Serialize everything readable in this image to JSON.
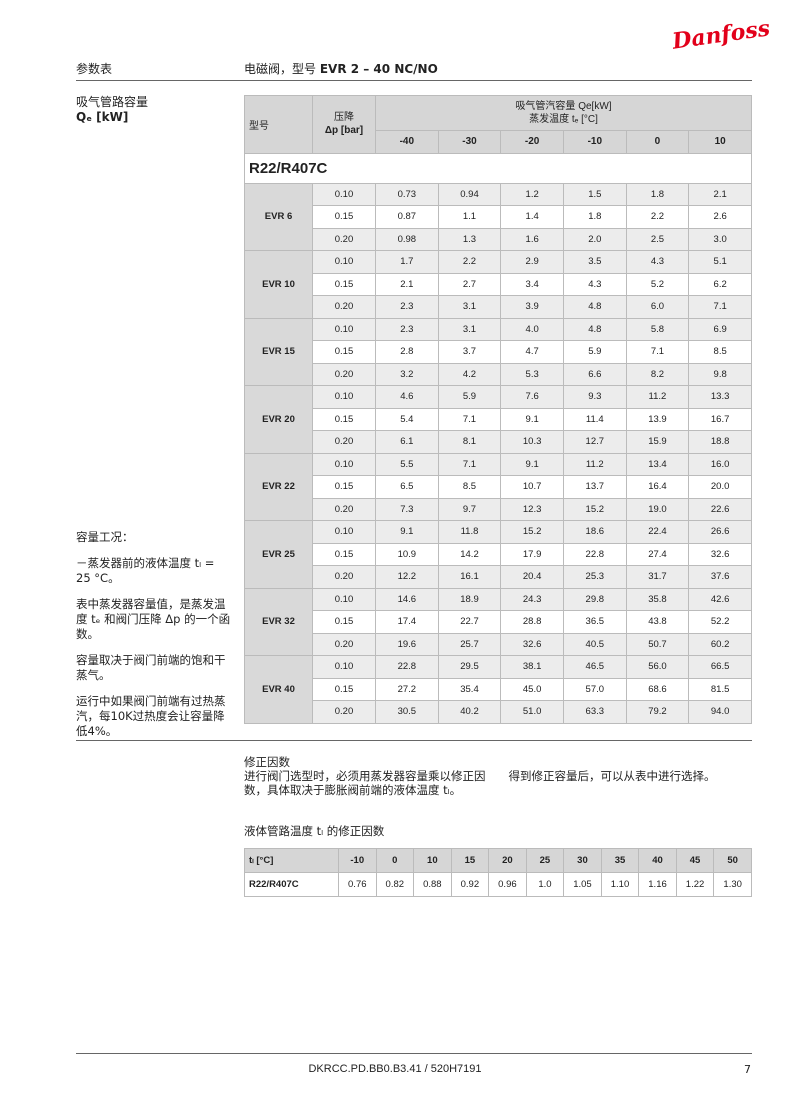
{
  "header": {
    "logo": "Danfoss",
    "section": "参数表",
    "title_prefix": "电磁阀，型号 ",
    "title_bold": "EVR 2 – 40 NC/NO"
  },
  "side": {
    "title": "吸气管路容量",
    "unit": "Qₑ [kW]",
    "notes": [
      "容量工况：",
      "－蒸发器前的液体温度 tₗ = 25 °C。",
      "表中蒸发器容量值，是蒸发温度 tₑ 和阀门压降 Δp 的一个函数。",
      "容量取决于阀门前端的饱和干蒸气。",
      "运行中如果阀门前端有过热蒸汽，每10K过热度会让容量降低4%。"
    ]
  },
  "table": {
    "col_model": "型号",
    "col_dp": "压降",
    "col_dp_unit": "Δp [bar]",
    "cap_title": "吸气管汽容量 Qe[kW]",
    "cap_sub": "蒸发温度 tₑ [°C]",
    "temps": [
      "-40",
      "-30",
      "-20",
      "-10",
      "0",
      "10"
    ],
    "refrigerant": "R22/R407C",
    "groups": [
      {
        "model": "EVR 6",
        "rows": [
          [
            "0.10",
            "0.73",
            "0.94",
            "1.2",
            "1.5",
            "1.8",
            "2.1"
          ],
          [
            "0.15",
            "0.87",
            "1.1",
            "1.4",
            "1.8",
            "2.2",
            "2.6"
          ],
          [
            "0.20",
            "0.98",
            "1.3",
            "1.6",
            "2.0",
            "2.5",
            "3.0"
          ]
        ]
      },
      {
        "model": "EVR 10",
        "rows": [
          [
            "0.10",
            "1.7",
            "2.2",
            "2.9",
            "3.5",
            "4.3",
            "5.1"
          ],
          [
            "0.15",
            "2.1",
            "2.7",
            "3.4",
            "4.3",
            "5.2",
            "6.2"
          ],
          [
            "0.20",
            "2.3",
            "3.1",
            "3.9",
            "4.8",
            "6.0",
            "7.1"
          ]
        ]
      },
      {
        "model": "EVR 15",
        "rows": [
          [
            "0.10",
            "2.3",
            "3.1",
            "4.0",
            "4.8",
            "5.8",
            "6.9"
          ],
          [
            "0.15",
            "2.8",
            "3.7",
            "4.7",
            "5.9",
            "7.1",
            "8.5"
          ],
          [
            "0.20",
            "3.2",
            "4.2",
            "5.3",
            "6.6",
            "8.2",
            "9.8"
          ]
        ]
      },
      {
        "model": "EVR 20",
        "rows": [
          [
            "0.10",
            "4.6",
            "5.9",
            "7.6",
            "9.3",
            "11.2",
            "13.3"
          ],
          [
            "0.15",
            "5.4",
            "7.1",
            "9.1",
            "11.4",
            "13.9",
            "16.7"
          ],
          [
            "0.20",
            "6.1",
            "8.1",
            "10.3",
            "12.7",
            "15.9",
            "18.8"
          ]
        ]
      },
      {
        "model": "EVR 22",
        "rows": [
          [
            "0.10",
            "5.5",
            "7.1",
            "9.1",
            "11.2",
            "13.4",
            "16.0"
          ],
          [
            "0.15",
            "6.5",
            "8.5",
            "10.7",
            "13.7",
            "16.4",
            "20.0"
          ],
          [
            "0.20",
            "7.3",
            "9.7",
            "12.3",
            "15.2",
            "19.0",
            "22.6"
          ]
        ]
      },
      {
        "model": "EVR 25",
        "rows": [
          [
            "0.10",
            "9.1",
            "11.8",
            "15.2",
            "18.6",
            "22.4",
            "26.6"
          ],
          [
            "0.15",
            "10.9",
            "14.2",
            "17.9",
            "22.8",
            "27.4",
            "32.6"
          ],
          [
            "0.20",
            "12.2",
            "16.1",
            "20.4",
            "25.3",
            "31.7",
            "37.6"
          ]
        ]
      },
      {
        "model": "EVR 32",
        "rows": [
          [
            "0.10",
            "14.6",
            "18.9",
            "24.3",
            "29.8",
            "35.8",
            "42.6"
          ],
          [
            "0.15",
            "17.4",
            "22.7",
            "28.8",
            "36.5",
            "43.8",
            "52.2"
          ],
          [
            "0.20",
            "19.6",
            "25.7",
            "32.6",
            "40.5",
            "50.7",
            "60.2"
          ]
        ]
      },
      {
        "model": "EVR 40",
        "rows": [
          [
            "0.10",
            "22.8",
            "29.5",
            "38.1",
            "46.5",
            "56.0",
            "66.5"
          ],
          [
            "0.15",
            "27.2",
            "35.4",
            "45.0",
            "57.0",
            "68.6",
            "81.5"
          ],
          [
            "0.20",
            "30.5",
            "40.2",
            "51.0",
            "63.3",
            "79.2",
            "94.0"
          ]
        ]
      }
    ]
  },
  "correction": {
    "heading": "修正因数",
    "text1": "进行阀门选型时，必须用蒸发器容量乘以修正因　　得到修正容量后，可以从表中进行选择。",
    "text2": "数，具体取决于膨胀阀前端的液体温度 tₗ。",
    "table_title": "液体管路温度 tₗ 的修正因数",
    "header": [
      "tₗ [°C]",
      "-10",
      "0",
      "10",
      "15",
      "20",
      "25",
      "30",
      "35",
      "40",
      "45",
      "50"
    ],
    "row": [
      "R22/R407C",
      "0.76",
      "0.82",
      "0.88",
      "0.92",
      "0.96",
      "1.0",
      "1.05",
      "1.10",
      "1.16",
      "1.22",
      "1.30"
    ]
  },
  "footer": {
    "code": "DKRCC.PD.BB0.B3.41 / 520H7191",
    "page": "7"
  }
}
